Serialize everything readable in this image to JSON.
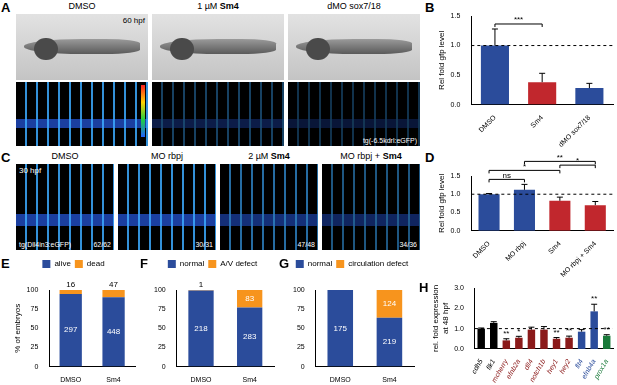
{
  "image_panels": [
    {
      "label": "A",
      "stage": "60 hpf",
      "transgene": "tg(-6.5kdrl:eGFP)",
      "columns": [
        {
          "title": "DMSO"
        },
        {
          "title": "1 µM Sm4"
        },
        {
          "title": "dMO sox7/18"
        }
      ]
    },
    {
      "label": "C",
      "stage": "30 hpf",
      "transgene": "tg(Dll4in3:eGFP)",
      "columns": [
        {
          "title": "DMSO",
          "count": "62/62"
        },
        {
          "title": "MO rbpj",
          "count": "30/31"
        },
        {
          "title": "2 µM Sm4",
          "count": "47/48"
        },
        {
          "title": "MO rbpj + Sm4",
          "count": "34/36"
        }
      ]
    }
  ],
  "chart_data": [
    {
      "label": "B",
      "type": "bar",
      "categories": [
        "DMSO",
        "Sm4",
        "dMO sox7/18"
      ],
      "values": [
        1.0,
        0.38,
        0.28
      ],
      "errors": [
        0.28,
        0.15,
        0.08
      ],
      "colors": [
        "#2b4c9b",
        "#c1272d",
        "#2b4c9b"
      ],
      "y_label": "Rel fold gfp level",
      "ylim": [
        0,
        1.5
      ],
      "yticks": [
        {
          "value": 0,
          "label": "0.0"
        },
        {
          "value": 0.5,
          "label": "0.5"
        },
        {
          "value": 1,
          "label": "1.0"
        },
        {
          "value": 1.5,
          "label": "1.5"
        }
      ],
      "reference_line": 1,
      "significance": [
        {
          "from": 0,
          "to": 1,
          "text": "***"
        }
      ],
      "grid": false
    },
    {
      "label": "D",
      "type": "bar",
      "categories": [
        "DMSO",
        "MO rbpj",
        "Sm4",
        "MO rbpj + Sm4"
      ],
      "values": [
        1.0,
        1.12,
        0.82,
        0.7
      ],
      "errors": [
        0.02,
        0.15,
        0.1,
        0.1
      ],
      "colors": [
        "#2b4c9b",
        "#2b4c9b",
        "#c1272d",
        "#c1272d"
      ],
      "y_label": "Rel fold gfp level",
      "ylim": [
        0,
        1.5
      ],
      "yticks": [
        {
          "value": 0,
          "label": "0.0"
        },
        {
          "value": 0.5,
          "label": "0.5"
        },
        {
          "value": 1,
          "label": "1.0"
        },
        {
          "value": 1.5,
          "label": "1.5"
        }
      ],
      "reference_line": 1,
      "significance": [
        {
          "from": 0,
          "to": 1,
          "text": "ns"
        },
        {
          "from": 0,
          "to": 2,
          "text": "*"
        },
        {
          "from": 1,
          "to": 3,
          "text": "**"
        },
        {
          "from": 2,
          "to": 3,
          "text": "*"
        }
      ],
      "grid": false
    },
    {
      "label": "E",
      "type": "bar",
      "stacked": true,
      "categories": [
        "DMSO",
        "Sm4"
      ],
      "series": [
        {
          "name": "alive",
          "color": "#2b4c9b",
          "values": [
            94.9,
            90.5
          ],
          "counts": [
            297,
            448
          ]
        },
        {
          "name": "dead",
          "color": "#f7941d",
          "values": [
            5.1,
            9.5
          ],
          "counts": [
            16,
            47
          ]
        }
      ],
      "ylim": [
        0,
        100
      ],
      "yticks": [
        0,
        25,
        50,
        75,
        100
      ],
      "y_label": "% of embryos",
      "legend": "top",
      "grid": false
    },
    {
      "label": "F",
      "type": "bar",
      "stacked": true,
      "categories": [
        "DMSO",
        "Sm4"
      ],
      "series": [
        {
          "name": "normal",
          "color": "#2b4c9b",
          "values": [
            99.5,
            77.3
          ],
          "counts": [
            218,
            283
          ]
        },
        {
          "name": "A/V defect",
          "color": "#f7941d",
          "values": [
            0.5,
            22.7
          ],
          "counts": [
            1,
            83
          ]
        }
      ],
      "ylim": [
        0,
        100
      ],
      "yticks": [
        0,
        25,
        50,
        75,
        100
      ],
      "legend": "top",
      "grid": false
    },
    {
      "label": "G",
      "type": "bar",
      "stacked": true,
      "categories": [
        "DMSO",
        "Sm4"
      ],
      "series": [
        {
          "name": "normal",
          "color": "#2b4c9b",
          "values": [
            100,
            63.8
          ],
          "counts": [
            175,
            219
          ]
        },
        {
          "name": "circulation defect",
          "color": "#f7941d",
          "values": [
            0,
            36.2
          ],
          "counts": [
            null,
            124
          ]
        }
      ],
      "ylim": [
        0,
        100
      ],
      "yticks": [
        0,
        25,
        50,
        75,
        100
      ],
      "legend": "top",
      "grid": false
    },
    {
      "label": "H",
      "type": "bar",
      "categories": [
        "cdh5",
        "flk1",
        "mcherry",
        "efnb2a",
        "dll4",
        "notch1b",
        "hey1",
        "hey2",
        "flt4",
        "efnb4a",
        "prox1a"
      ],
      "values": [
        1.0,
        1.28,
        0.42,
        0.55,
        0.95,
        0.95,
        0.5,
        0.55,
        0.85,
        1.85,
        0.65
      ],
      "errors": [
        0.03,
        0.06,
        0.08,
        0.07,
        0.12,
        0.15,
        0.06,
        0.08,
        0.1,
        0.35,
        0.05
      ],
      "colors": [
        "#000000",
        "#000000",
        "#8b1a1a",
        "#8b1a1a",
        "#8b1a1a",
        "#8b1a1a",
        "#8b1a1a",
        "#8b1a1a",
        "#2b4c9b",
        "#2b4c9b",
        "#1a7a3a"
      ],
      "y_label": [
        "rel. fold expression",
        "at 48 hpf"
      ],
      "ylim": [
        0,
        3
      ],
      "yticks": [
        {
          "value": 0,
          "label": "0.0"
        },
        {
          "value": 1,
          "label": "1.0"
        },
        {
          "value": 2,
          "label": "2.0"
        },
        {
          "value": 3,
          "label": "3.0"
        }
      ],
      "reference_line": 1,
      "annotations": [
        {
          "index": 2,
          "text": "**"
        },
        {
          "index": 3,
          "text": "*"
        },
        {
          "index": 6,
          "text": "**"
        },
        {
          "index": 7,
          "text": "**"
        },
        {
          "index": 9,
          "text": "**"
        },
        {
          "index": 10,
          "text": "**"
        }
      ],
      "grid": false
    }
  ]
}
